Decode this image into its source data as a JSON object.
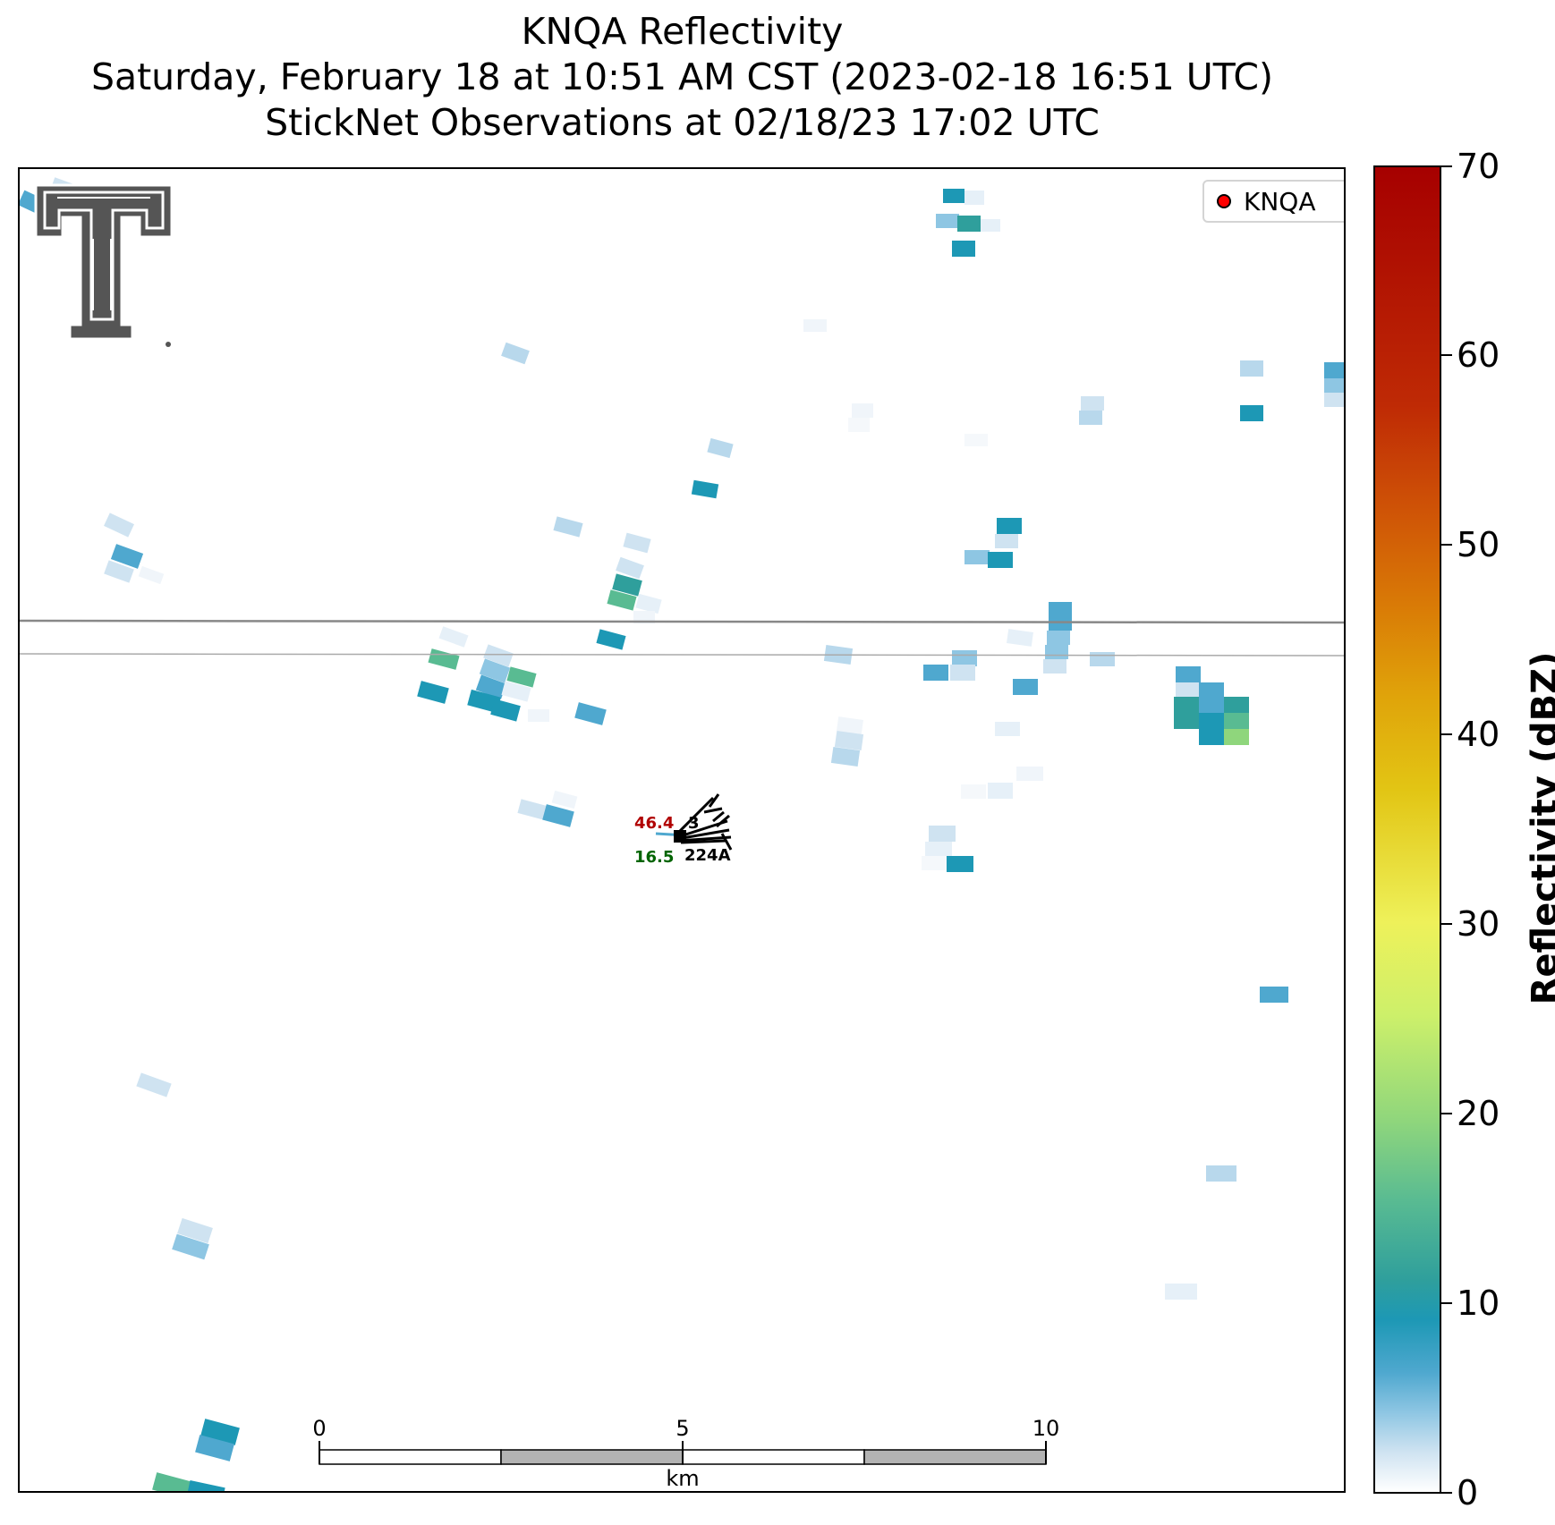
{
  "title": {
    "line1": "KNQA Reflectivity",
    "line2": "Saturday, February 18 at 10:51 AM CST (2023-02-18 16:51 UTC)",
    "line3": "StickNet Observations at 02/18/23 17:02 UTC"
  },
  "legend": {
    "label": "KNQA",
    "marker_color": "#ff0000"
  },
  "colorbar": {
    "title": "Reflectivity (dBZ)",
    "min": 0,
    "max": 70,
    "ticks": [
      "0",
      "10",
      "20",
      "30",
      "40",
      "50",
      "60",
      "70"
    ]
  },
  "scalebar": {
    "ticks": [
      "0",
      "5",
      "10"
    ],
    "unit": "km"
  },
  "station": {
    "id": "224A",
    "temperature": "46.4",
    "dewpoint": "16.5",
    "pressure_partial": "3",
    "temperature_color": "#b00000",
    "dewpoint_color": "#006400"
  },
  "logo": {
    "name": "texas-tech-double-t-logo",
    "color": "#555555"
  }
}
